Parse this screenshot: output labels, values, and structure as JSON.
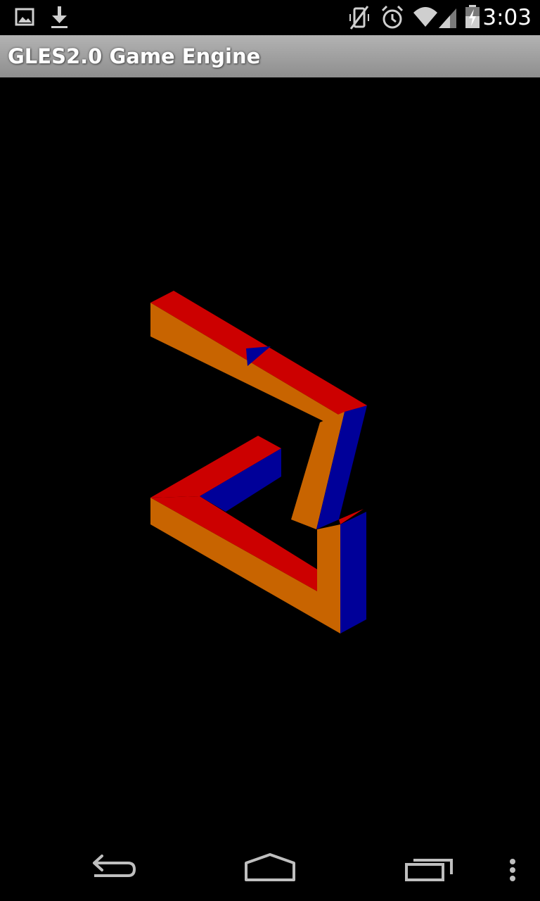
{
  "status_bar": {
    "time": "3:03",
    "icons": [
      "gallery-icon",
      "download-icon",
      "vibrate-mute-icon",
      "alarm-icon",
      "wifi-icon",
      "cell-signal-icon",
      "battery-charging-icon"
    ]
  },
  "app": {
    "title": "GLES2.0 Game Engine"
  },
  "scene": {
    "description_colors": {
      "top_face": "#cc0000",
      "front_face": "#c86400",
      "side_face": "#000099",
      "background": "#000000"
    }
  },
  "nav_bar": {
    "buttons": [
      "back-button",
      "home-button",
      "recent-apps-button",
      "overflow-menu-button"
    ]
  }
}
